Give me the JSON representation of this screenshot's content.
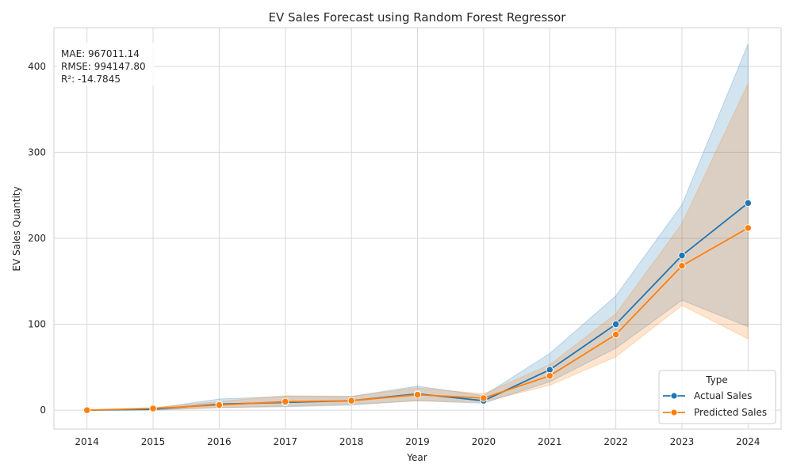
{
  "chart_data": {
    "type": "line",
    "title": "EV Sales Forecast using Random Forest Regressor",
    "xlabel": "Year",
    "ylabel": "EV Sales Quantity",
    "x": [
      2014,
      2015,
      2016,
      2017,
      2018,
      2019,
      2020,
      2021,
      2022,
      2023,
      2024
    ],
    "xlim": [
      2013.5,
      2024.5
    ],
    "ylim": [
      -22,
      445
    ],
    "yticks": [
      0,
      100,
      200,
      300,
      400
    ],
    "grid": true,
    "legend": {
      "title": "Type",
      "position": "bottom-right"
    },
    "metrics": [
      "MAE: 967011.14",
      "RMSE: 994147.80",
      "R²: -14.7845"
    ],
    "series": [
      {
        "name": "Actual Sales",
        "color": "#1f77b4",
        "values": [
          0,
          1,
          7,
          9,
          11,
          19,
          11,
          47,
          100,
          180,
          241
        ],
        "ci_low": [
          0,
          0,
          3,
          4,
          6,
          11,
          8,
          33,
          72,
          128,
          97
        ],
        "ci_high": [
          0,
          2,
          13,
          16,
          16,
          28,
          17,
          66,
          133,
          239,
          426
        ]
      },
      {
        "name": "Predicted Sales",
        "color": "#ff7f0e",
        "values": [
          0,
          2,
          6,
          10,
          11,
          18,
          14,
          40,
          88,
          168,
          212
        ],
        "ci_low": [
          0,
          1,
          3,
          5,
          7,
          11,
          10,
          29,
          62,
          122,
          83
        ],
        "ci_high": [
          0,
          3,
          10,
          17,
          16,
          26,
          19,
          53,
          112,
          217,
          380
        ]
      }
    ]
  }
}
